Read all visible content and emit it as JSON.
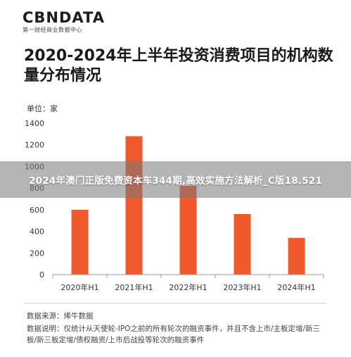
{
  "header": {
    "logo": "CBNDATA",
    "logo_sub": "第一财经商业数据中心"
  },
  "chart_title": "2020-2024年上半年投资消费项目的机构数量分布情况",
  "overlay_banner": "2024年澳门正版免费资本车344期,高效实施方法解析_C版18.521",
  "footer": {
    "source": "数据来源：烯牛数据",
    "note": "数据说明：仅统计从天使轮-IPO之前的所有轮次的融资事件，并且不含上市/主板定增/新三板/新三板定增/债权融资/上市后战投等轮次的融资事件"
  },
  "colors": {
    "bar": "#f0592b",
    "axis": "#999999",
    "text": "#333333"
  },
  "chart_data": {
    "type": "bar",
    "title": "2020-2024年上半年投资消费项目的机构数量分布情况",
    "unit_label": "单位：家",
    "categories": [
      "2020年H1",
      "2021年H1",
      "2022年H1",
      "2023年H1",
      "2024年H1"
    ],
    "values": [
      600,
      1280,
      820,
      560,
      340
    ],
    "yticks": [
      0,
      200,
      400,
      600,
      800,
      1000,
      1200,
      1400
    ],
    "ylim": [
      0,
      1400
    ],
    "grid": false,
    "legend": "none"
  }
}
